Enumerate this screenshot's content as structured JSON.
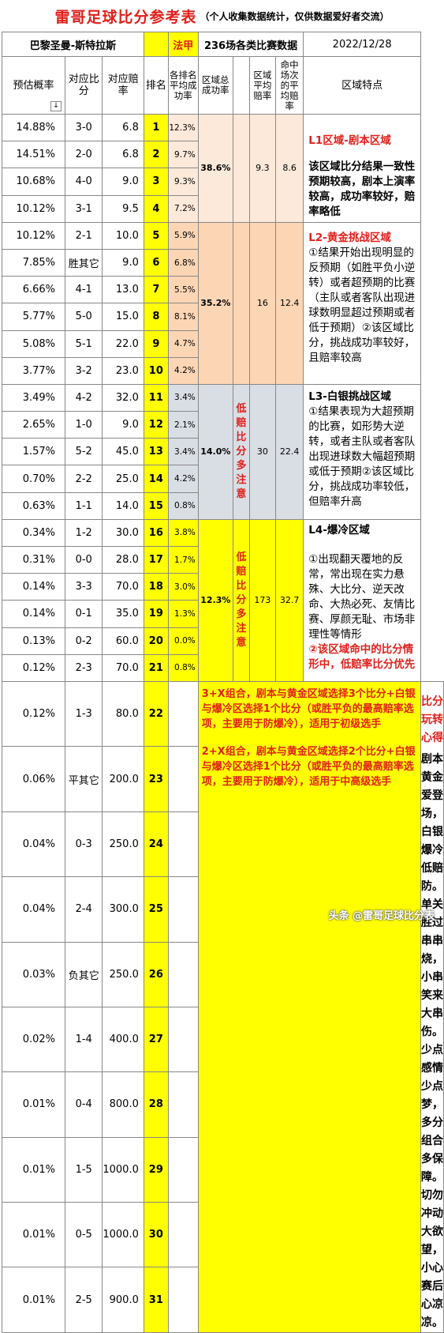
{
  "title": {
    "main": "雷哥足球比分参考表",
    "sub": "（个人收集数据统计，仅供数据爱好者交流）"
  },
  "header1": {
    "match": "巴黎圣曼-斯特拉斯",
    "league": "法甲",
    "stats": "236场各类比赛数据",
    "date": "2022/12/28"
  },
  "header2": {
    "prob": "预估概率",
    "score": "对应比分",
    "odds": "对应赔率",
    "rank": "排名",
    "rate": "各排名平均成功率",
    "zone_total": "区域总成功率",
    "zone_avg": "区域平均赔率",
    "zone_hit": "命中场次的平均赔率",
    "zone_feat": "区域特点"
  },
  "rows": [
    {
      "prob": "14.88%",
      "score": "3-0",
      "odds": "6.8",
      "rank": "1",
      "rate": "12.3%"
    },
    {
      "prob": "14.51%",
      "score": "2-0",
      "odds": "6.8",
      "rank": "2",
      "rate": "9.7%"
    },
    {
      "prob": "10.68%",
      "score": "4-0",
      "odds": "9.0",
      "rank": "3",
      "rate": "9.3%"
    },
    {
      "prob": "10.12%",
      "score": "3-1",
      "odds": "9.5",
      "rank": "4",
      "rate": "7.2%"
    },
    {
      "prob": "10.12%",
      "score": "2-1",
      "odds": "10.0",
      "rank": "5",
      "rate": "5.9%"
    },
    {
      "prob": "7.85%",
      "score": "胜其它",
      "odds": "9.0",
      "rank": "6",
      "rate": "6.8%"
    },
    {
      "prob": "6.66%",
      "score": "4-1",
      "odds": "13.0",
      "rank": "7",
      "rate": "5.5%"
    },
    {
      "prob": "5.77%",
      "score": "5-0",
      "odds": "15.0",
      "rank": "8",
      "rate": "8.1%"
    },
    {
      "prob": "5.08%",
      "score": "5-1",
      "odds": "22.0",
      "rank": "9",
      "rate": "4.7%"
    },
    {
      "prob": "3.77%",
      "score": "3-2",
      "odds": "23.0",
      "rank": "10",
      "rate": "4.2%"
    },
    {
      "prob": "3.49%",
      "score": "4-2",
      "odds": "32.0",
      "rank": "11",
      "rate": "3.4%"
    },
    {
      "prob": "2.65%",
      "score": "1-0",
      "odds": "9.0",
      "rank": "12",
      "rate": "2.1%"
    },
    {
      "prob": "1.57%",
      "score": "5-2",
      "odds": "45.0",
      "rank": "13",
      "rate": "3.4%"
    },
    {
      "prob": "0.70%",
      "score": "2-2",
      "odds": "25.0",
      "rank": "14",
      "rate": "4.2%"
    },
    {
      "prob": "0.63%",
      "score": "1-1",
      "odds": "14.0",
      "rank": "15",
      "rate": "0.8%"
    },
    {
      "prob": "0.34%",
      "score": "1-2",
      "odds": "30.0",
      "rank": "16",
      "rate": "3.8%"
    },
    {
      "prob": "0.31%",
      "score": "0-0",
      "odds": "28.0",
      "rank": "17",
      "rate": "1.7%"
    },
    {
      "prob": "0.14%",
      "score": "3-3",
      "odds": "70.0",
      "rank": "18",
      "rate": "3.0%"
    },
    {
      "prob": "0.14%",
      "score": "0-1",
      "odds": "35.0",
      "rank": "19",
      "rate": "1.3%"
    },
    {
      "prob": "0.13%",
      "score": "0-2",
      "odds": "60.0",
      "rank": "20",
      "rate": "0.0%"
    },
    {
      "prob": "0.12%",
      "score": "2-3",
      "odds": "70.0",
      "rank": "21",
      "rate": "0.8%"
    },
    {
      "prob": "0.12%",
      "score": "1-3",
      "odds": "80.0",
      "rank": "22",
      "rate": ""
    },
    {
      "prob": "0.06%",
      "score": "平其它",
      "odds": "200.0",
      "rank": "23",
      "rate": ""
    },
    {
      "prob": "0.04%",
      "score": "0-3",
      "odds": "250.0",
      "rank": "24",
      "rate": ""
    },
    {
      "prob": "0.04%",
      "score": "2-4",
      "odds": "300.0",
      "rank": "25",
      "rate": ""
    },
    {
      "prob": "0.03%",
      "score": "负其它",
      "odds": "250.0",
      "rank": "26",
      "rate": ""
    },
    {
      "prob": "0.02%",
      "score": "1-4",
      "odds": "400.0",
      "rank": "27",
      "rate": ""
    },
    {
      "prob": "0.01%",
      "score": "0-4",
      "odds": "800.0",
      "rank": "28",
      "rate": ""
    },
    {
      "prob": "0.01%",
      "score": "1-5",
      "odds": "1000.0",
      "rank": "29",
      "rate": ""
    },
    {
      "prob": "0.01%",
      "score": "0-5",
      "odds": "1000.0",
      "rank": "30",
      "rate": ""
    },
    {
      "prob": "0.01%",
      "score": "2-5",
      "odds": "900.0",
      "rank": "31",
      "rate": ""
    }
  ],
  "zones": [
    {
      "total": "38.6%",
      "avg": "9.3",
      "hit": "8.6",
      "note": "",
      "title": "L1区域-剧本区域",
      "text": "该区域比分结果一致性预期较高，剧本上演率较高，成功率较好，赔率略低",
      "red": ""
    },
    {
      "total": "35.2%",
      "avg": "16",
      "hit": "12.4",
      "note": "",
      "title": "L2-黄金挑战区域",
      "text": "①结果开始出现明显的反预期（如胜平负小逆转）或者超预期的比赛（主队或者客队出现进球数明显超过预期或者低于预期）②该区域比分，挑战成功率较好，且赔率较高",
      "red": ""
    },
    {
      "total": "14.0%",
      "avg": "30",
      "hit": "22.4",
      "note": "低赔比分多注意",
      "title": "L3-白银挑战区域",
      "text": "①结果表现为大超预期的比赛，如形势大逆转，或者主队或者客队出现进球数大幅超预期或低于预期②该区域比分，挑战成功率较低，但赔率升高",
      "red": ""
    },
    {
      "total": "12.3%",
      "avg": "173",
      "hit": "32.7",
      "note": "低赔比分多注意",
      "title": "L4-爆冷区域",
      "text": "①出现翻天覆地的反常，常出现在实力悬殊、大比分、逆天改命、大热必死、友情比赛、厚颜无耻、市场非理性等情形",
      "red": "②该区域命中的比分情形中，低赔率比分优先"
    }
  ],
  "combo": {
    "p1": "3+X组合，剧本与黄金区域选择3个比分+白银与爆冷区选择1个比分（或胜平负的最高赔率选项，主要用于防爆冷），适用于初级选手",
    "p2": "2+X组合，剧本与黄金区域选择2个比分+白银与爆冷区选择1个比分（或胜平负的最高赔率选项，主要用于防爆冷），适用于中高级选手"
  },
  "tips": {
    "title": "比分玩转心得",
    "lines": [
      "剧本黄金爱登场，",
      "白银爆冷低赔防。",
      "单关胜过串串烧，",
      "小串笑来大串伤。",
      "少点感情少点梦，",
      "多分组合多保障。",
      "切勿冲动大欲望，",
      "小心赛后心凉凉。"
    ]
  },
  "watermark": "头条 @雷哥足球比分表"
}
